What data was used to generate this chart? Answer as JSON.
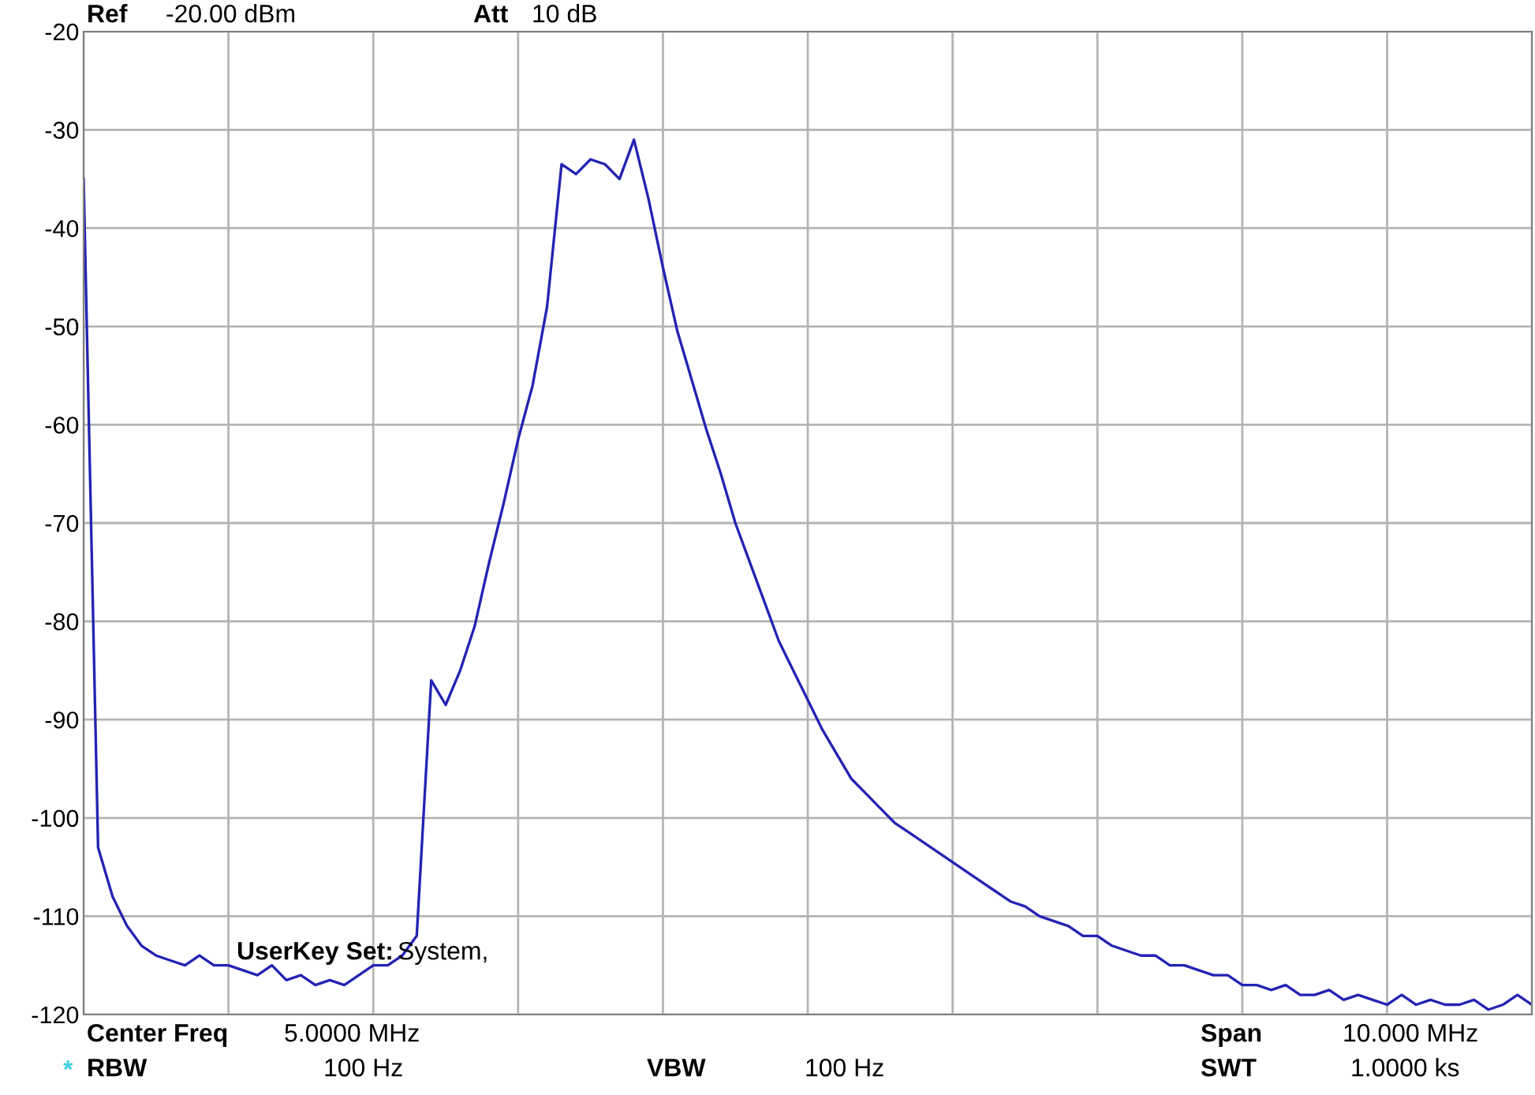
{
  "chart_data": {
    "type": "line",
    "categories": [
      null,
      null,
      null,
      null,
      null,
      null,
      null,
      null,
      null,
      null,
      null,
      null,
      null,
      null,
      null,
      null,
      null,
      null,
      null,
      null,
      null,
      null,
      null,
      null,
      null,
      null,
      null,
      null,
      null,
      null,
      null,
      null,
      null,
      null,
      null,
      null,
      null,
      null,
      null,
      null,
      null,
      null,
      null,
      null,
      null,
      null,
      null,
      null,
      null,
      null,
      null,
      null,
      null,
      null,
      null,
      null,
      null,
      null,
      null,
      null,
      null,
      null,
      null,
      null,
      null,
      null,
      null,
      null,
      null,
      null,
      null,
      null,
      null,
      null,
      null,
      null,
      null,
      null,
      null,
      null,
      null,
      null,
      null,
      null,
      null,
      null,
      null,
      null,
      null,
      null,
      null,
      null,
      null,
      null,
      null,
      null,
      null,
      null,
      null,
      null,
      null
    ],
    "series": [
      {
        "color": "#2323b4",
        "values": [
          -35,
          -103,
          -108,
          -111,
          -113,
          -114,
          -114.5,
          -115,
          -114,
          -115,
          -115,
          -115.5,
          -116,
          -115,
          -116.5,
          -116,
          -117,
          -116.5,
          -117,
          -116,
          -115,
          -115,
          -114,
          -112,
          -86,
          -88.5,
          -85,
          -80.5,
          -74,
          -68,
          -61.5,
          -56,
          -48,
          -33.5,
          -34.5,
          -33,
          -33.5,
          -35,
          -31,
          -37,
          -44,
          -50.5,
          -55.5,
          -60.5,
          -65,
          -70,
          -74,
          -78,
          -82,
          -85,
          -88,
          -91,
          -93.5,
          -96,
          -97.5,
          -99,
          -100.5,
          -101.5,
          -102.5,
          -103.5,
          -104.5,
          -105.5,
          -106.5,
          -107.5,
          -108.5,
          -109,
          -110,
          -110.5,
          -111,
          -112,
          -112,
          -113,
          -113.5,
          -114,
          -114,
          -115,
          -115,
          -115.5,
          -116,
          -116,
          -117,
          -117,
          -117.5,
          -117,
          -118,
          -118,
          -117.5,
          -118.5,
          -118,
          -118.5,
          -119,
          -118,
          -119,
          -118.5,
          -119,
          -119,
          -118.5,
          -119.5,
          -119,
          -118,
          -119
        ]
      }
    ],
    "ylim": [
      -120,
      -20
    ],
    "yticks": [
      -20,
      -30,
      -40,
      -50,
      -60,
      -70,
      -80,
      -90,
      -100,
      -110,
      -120
    ],
    "grid": true,
    "tick_labels": "y",
    "annotations": [
      "Ref",
      "-20.00 dBm",
      "Att",
      "10 dB",
      "Center Freq",
      "5.0000 MHz",
      "Span",
      "10.000 MHz",
      "RBW",
      "100 Hz",
      "VBW",
      "100 Hz",
      "SWT",
      "1.0000 ks",
      "UserKey Set:",
      "System,",
      "*"
    ]
  }
}
